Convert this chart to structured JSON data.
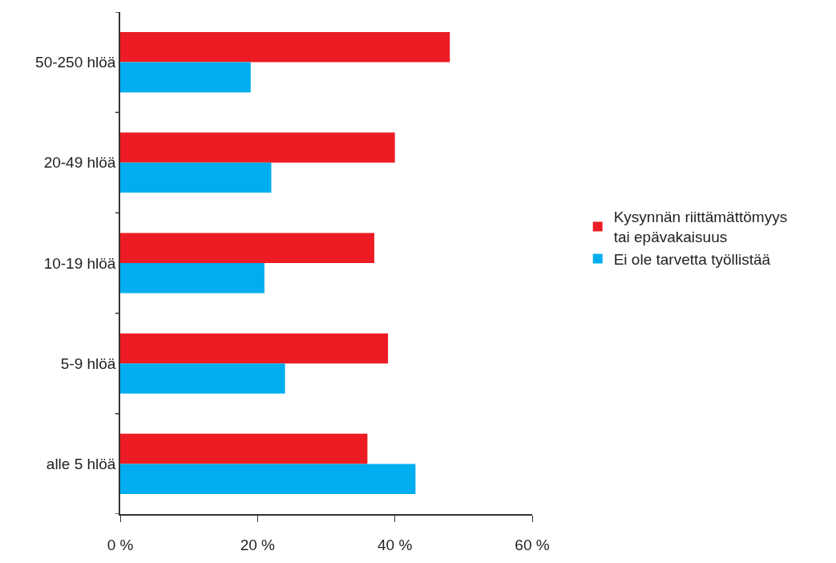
{
  "chart_data": {
    "type": "bar",
    "orientation": "horizontal",
    "categories": [
      "50-250 hlöä",
      "20-49 hlöä",
      "10-19 hlöä",
      "5-9 hlöä",
      "alle 5 hlöä"
    ],
    "series": [
      {
        "name": "Kysynnän riittämättömyys tai epävakaisuus",
        "color": "#ed1c24",
        "values": [
          48,
          40,
          37,
          39,
          36
        ]
      },
      {
        "name": "Ei ole tarvetta työllistää",
        "color": "#00aeef",
        "values": [
          19,
          22,
          21,
          24,
          43
        ]
      }
    ],
    "xlim": [
      0,
      60
    ],
    "xticks": [
      {
        "value": 0,
        "label": "0 %"
      },
      {
        "value": 20,
        "label": "20 %"
      },
      {
        "value": 40,
        "label": "40 %"
      },
      {
        "value": 60,
        "label": "60 %"
      }
    ],
    "legend": "right"
  }
}
